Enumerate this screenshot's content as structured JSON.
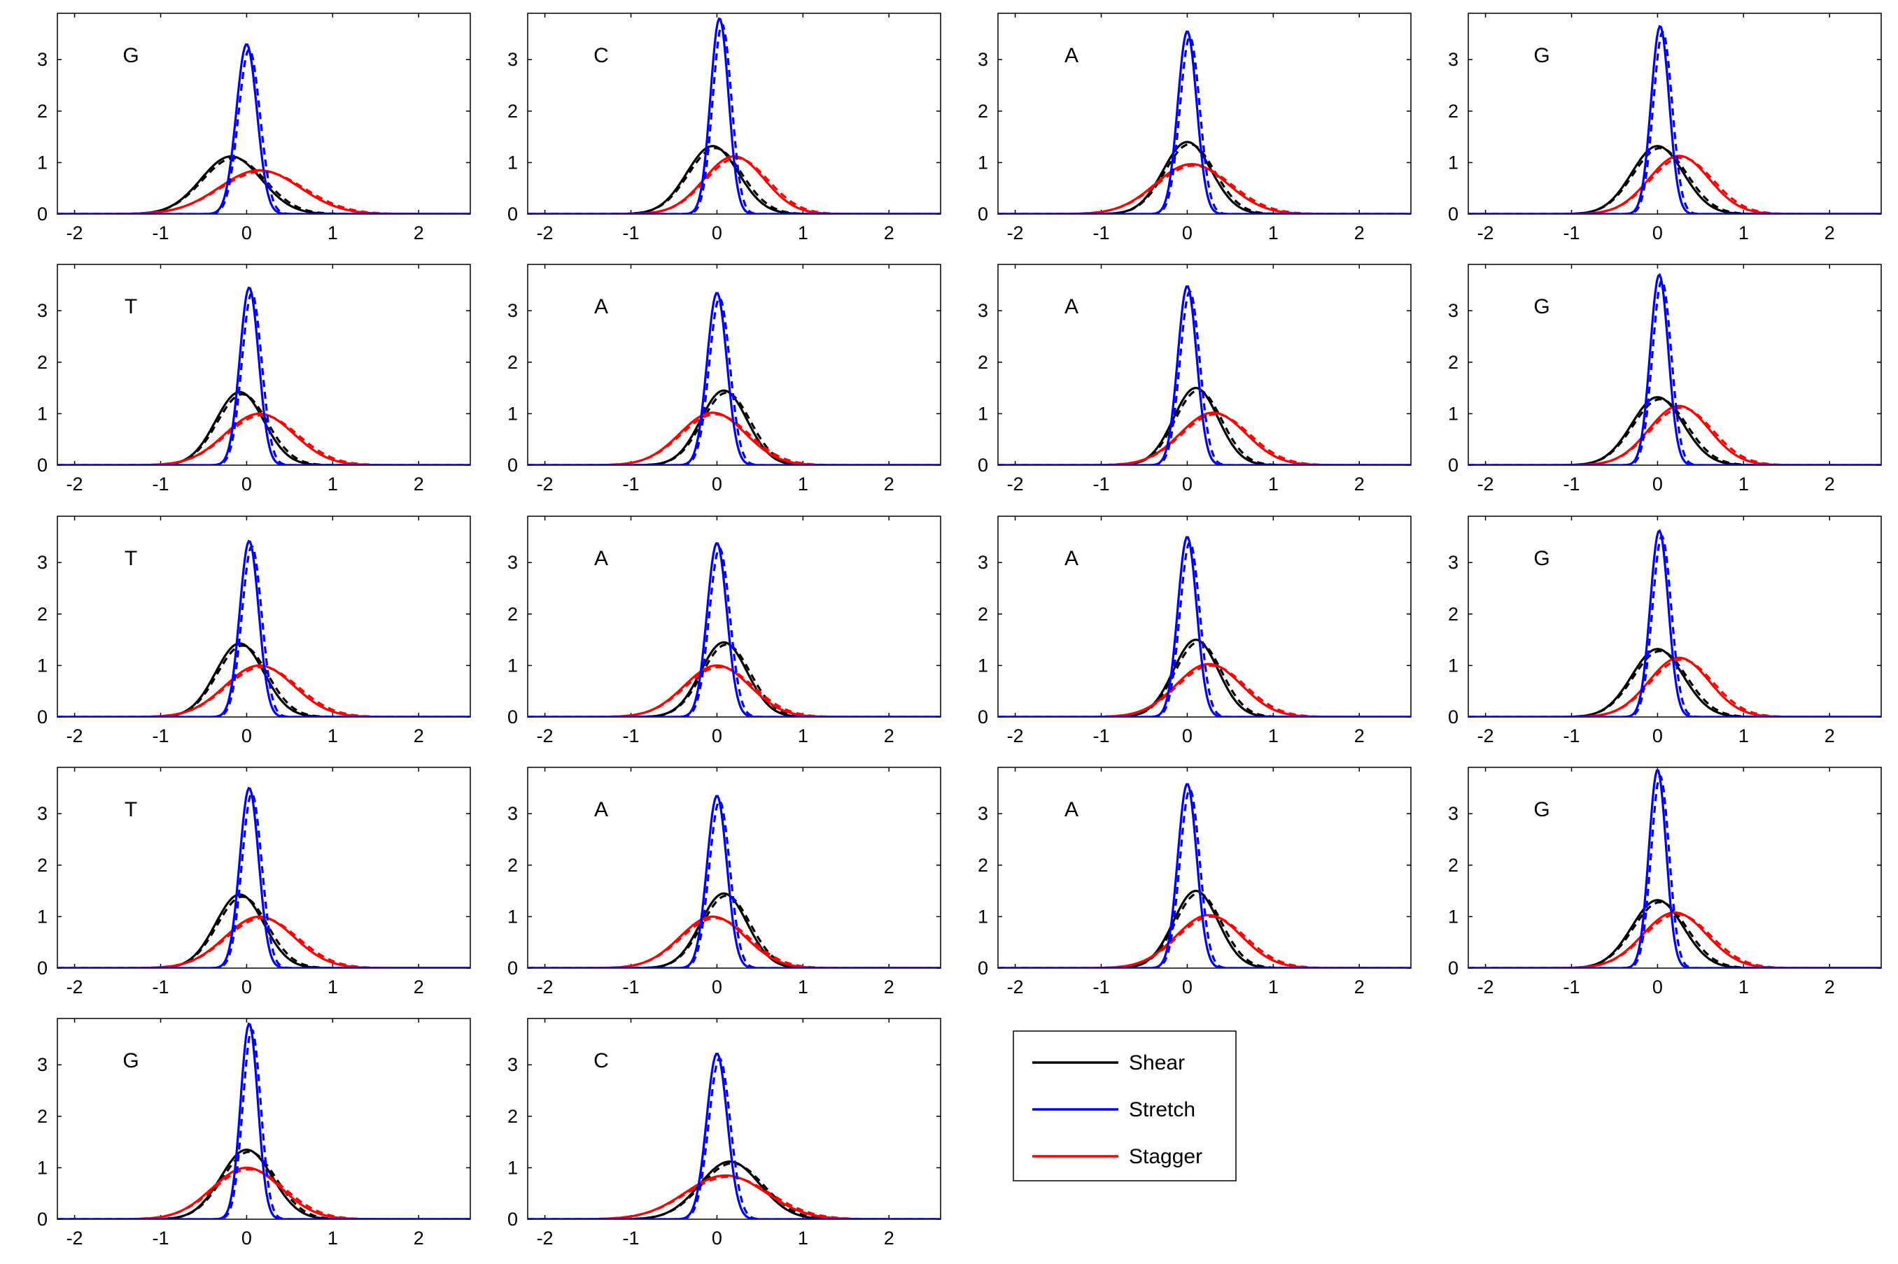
{
  "chart_data": {
    "type": "line",
    "layout": "grid of 18 small-multiple density plots (5 rows x 4 columns, last row 2 panels + legend)",
    "xlim": [
      -2.2,
      2.6
    ],
    "ylim": [
      0,
      3.9
    ],
    "xticks": [
      -2,
      -1,
      0,
      1,
      2
    ],
    "yticks": [
      0,
      1,
      2,
      3
    ],
    "grid": false,
    "curve_shape": "gaussian density: y = peak * exp(-0.5*((x-mu)/sigma)^2); each series drawn solid and dashed",
    "legend": {
      "placement": "row 5, column 3",
      "entries": [
        {
          "label": "Shear",
          "color": "#000000"
        },
        {
          "label": "Stretch",
          "color": "#0000ff"
        },
        {
          "label": "Stagger",
          "color": "#ff0000"
        }
      ]
    },
    "colors": {
      "shear": "#000000",
      "stretch": "#0000ff",
      "stagger": "#ff0000"
    },
    "panels": [
      {
        "label": "G",
        "series": {
          "shear": {
            "mu": -0.18,
            "sigma": 0.35,
            "peak": 1.12
          },
          "stretch": {
            "mu": 0.0,
            "sigma": 0.12,
            "peak": 3.3
          },
          "stagger": {
            "mu": 0.15,
            "sigma": 0.47,
            "peak": 0.85
          }
        }
      },
      {
        "label": "C",
        "series": {
          "shear": {
            "mu": -0.05,
            "sigma": 0.3,
            "peak": 1.32
          },
          "stretch": {
            "mu": 0.03,
            "sigma": 0.105,
            "peak": 3.8
          },
          "stagger": {
            "mu": 0.2,
            "sigma": 0.35,
            "peak": 1.12
          }
        }
      },
      {
        "label": "A",
        "series": {
          "shear": {
            "mu": 0.0,
            "sigma": 0.28,
            "peak": 1.4
          },
          "stretch": {
            "mu": 0.0,
            "sigma": 0.11,
            "peak": 3.55
          },
          "stagger": {
            "mu": 0.05,
            "sigma": 0.42,
            "peak": 0.97
          }
        }
      },
      {
        "label": "G",
        "series": {
          "shear": {
            "mu": 0.0,
            "sigma": 0.3,
            "peak": 1.32
          },
          "stretch": {
            "mu": 0.03,
            "sigma": 0.105,
            "peak": 3.65
          },
          "stagger": {
            "mu": 0.25,
            "sigma": 0.35,
            "peak": 1.13
          }
        }
      },
      {
        "label": "T",
        "series": {
          "shear": {
            "mu": -0.08,
            "sigma": 0.28,
            "peak": 1.42
          },
          "stretch": {
            "mu": 0.03,
            "sigma": 0.11,
            "peak": 3.45
          },
          "stagger": {
            "mu": 0.15,
            "sigma": 0.4,
            "peak": 1.0
          }
        }
      },
      {
        "label": "A",
        "series": {
          "shear": {
            "mu": 0.08,
            "sigma": 0.27,
            "peak": 1.45
          },
          "stretch": {
            "mu": 0.0,
            "sigma": 0.115,
            "peak": 3.35
          },
          "stagger": {
            "mu": -0.05,
            "sigma": 0.38,
            "peak": 1.02
          }
        }
      },
      {
        "label": "A",
        "series": {
          "shear": {
            "mu": 0.1,
            "sigma": 0.26,
            "peak": 1.5
          },
          "stretch": {
            "mu": 0.0,
            "sigma": 0.11,
            "peak": 3.48
          },
          "stagger": {
            "mu": 0.3,
            "sigma": 0.38,
            "peak": 1.02
          }
        }
      },
      {
        "label": "G",
        "series": {
          "shear": {
            "mu": 0.0,
            "sigma": 0.3,
            "peak": 1.32
          },
          "stretch": {
            "mu": 0.02,
            "sigma": 0.105,
            "peak": 3.7
          },
          "stagger": {
            "mu": 0.25,
            "sigma": 0.35,
            "peak": 1.15
          }
        }
      },
      {
        "label": "T",
        "series": {
          "shear": {
            "mu": -0.08,
            "sigma": 0.28,
            "peak": 1.43
          },
          "stretch": {
            "mu": 0.03,
            "sigma": 0.11,
            "peak": 3.42
          },
          "stagger": {
            "mu": 0.15,
            "sigma": 0.4,
            "peak": 1.0
          }
        }
      },
      {
        "label": "A",
        "series": {
          "shear": {
            "mu": 0.08,
            "sigma": 0.27,
            "peak": 1.45
          },
          "stretch": {
            "mu": 0.0,
            "sigma": 0.115,
            "peak": 3.38
          },
          "stagger": {
            "mu": 0.0,
            "sigma": 0.38,
            "peak": 1.0
          }
        }
      },
      {
        "label": "A",
        "series": {
          "shear": {
            "mu": 0.1,
            "sigma": 0.26,
            "peak": 1.5
          },
          "stretch": {
            "mu": 0.0,
            "sigma": 0.11,
            "peak": 3.5
          },
          "stagger": {
            "mu": 0.25,
            "sigma": 0.38,
            "peak": 1.03
          }
        }
      },
      {
        "label": "G",
        "series": {
          "shear": {
            "mu": 0.0,
            "sigma": 0.3,
            "peak": 1.32
          },
          "stretch": {
            "mu": 0.02,
            "sigma": 0.105,
            "peak": 3.62
          },
          "stagger": {
            "mu": 0.25,
            "sigma": 0.35,
            "peak": 1.15
          }
        }
      },
      {
        "label": "T",
        "series": {
          "shear": {
            "mu": -0.08,
            "sigma": 0.28,
            "peak": 1.43
          },
          "stretch": {
            "mu": 0.03,
            "sigma": 0.11,
            "peak": 3.5
          },
          "stagger": {
            "mu": 0.15,
            "sigma": 0.4,
            "peak": 1.0
          }
        }
      },
      {
        "label": "A",
        "series": {
          "shear": {
            "mu": 0.08,
            "sigma": 0.27,
            "peak": 1.45
          },
          "stretch": {
            "mu": 0.0,
            "sigma": 0.115,
            "peak": 3.35
          },
          "stagger": {
            "mu": -0.05,
            "sigma": 0.38,
            "peak": 1.0
          }
        }
      },
      {
        "label": "A",
        "series": {
          "shear": {
            "mu": 0.1,
            "sigma": 0.26,
            "peak": 1.5
          },
          "stretch": {
            "mu": 0.0,
            "sigma": 0.11,
            "peak": 3.58
          },
          "stagger": {
            "mu": 0.25,
            "sigma": 0.38,
            "peak": 1.03
          }
        }
      },
      {
        "label": "G",
        "series": {
          "shear": {
            "mu": 0.0,
            "sigma": 0.3,
            "peak": 1.32
          },
          "stretch": {
            "mu": 0.0,
            "sigma": 0.1,
            "peak": 3.85
          },
          "stagger": {
            "mu": 0.2,
            "sigma": 0.37,
            "peak": 1.08
          }
        }
      },
      {
        "label": "G",
        "series": {
          "shear": {
            "mu": 0.0,
            "sigma": 0.3,
            "peak": 1.35
          },
          "stretch": {
            "mu": 0.03,
            "sigma": 0.1,
            "peak": 3.8
          },
          "stagger": {
            "mu": 0.0,
            "sigma": 0.4,
            "peak": 1.0
          }
        }
      },
      {
        "label": "C",
        "series": {
          "shear": {
            "mu": 0.15,
            "sigma": 0.35,
            "peak": 1.12
          },
          "stretch": {
            "mu": 0.0,
            "sigma": 0.12,
            "peak": 3.22
          },
          "stagger": {
            "mu": 0.1,
            "sigma": 0.47,
            "peak": 0.85
          }
        }
      }
    ]
  }
}
